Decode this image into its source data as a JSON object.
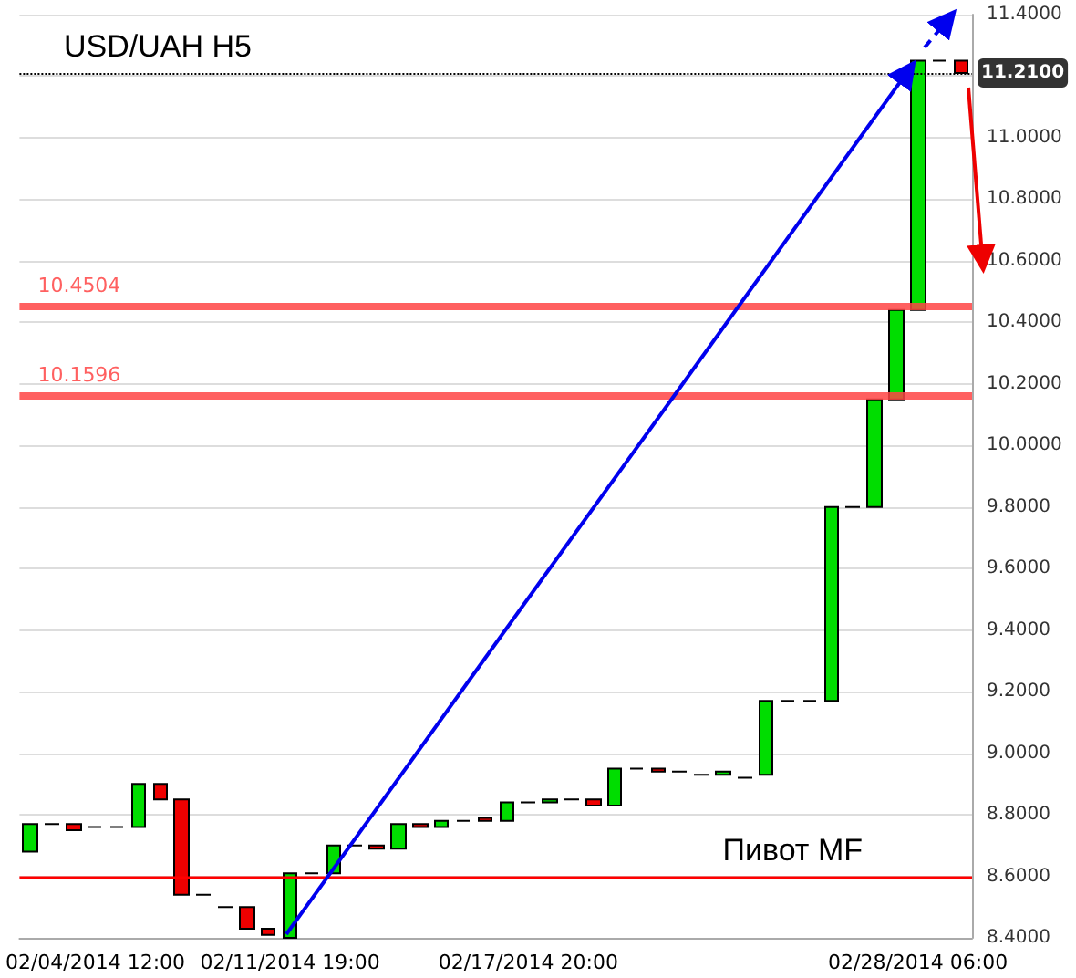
{
  "chart_data": {
    "type": "candlestick",
    "title": "USD/UAH H5",
    "categories": [
      null,
      null,
      null,
      "02/04/2014 12:00",
      null,
      null,
      null,
      null,
      null,
      null,
      null,
      null,
      "02/11/2014 19:00",
      null,
      null,
      null,
      null,
      null,
      null,
      null,
      null,
      null,
      null,
      "02/17/2014 20:00",
      null,
      null,
      null,
      null,
      null,
      null,
      null,
      null,
      null,
      null,
      null,
      null,
      null,
      null,
      null,
      null,
      null,
      "02/28/2014 06:00",
      null,
      null
    ],
    "ohlc": [
      [
        8.68,
        8.77,
        8.68,
        8.77
      ],
      [
        8.77,
        8.77,
        8.77,
        8.77
      ],
      [
        8.77,
        8.77,
        8.75,
        8.75
      ],
      [
        8.76,
        8.76,
        8.76,
        8.76
      ],
      [
        8.76,
        8.76,
        8.76,
        8.76
      ],
      [
        8.76,
        8.9,
        8.76,
        8.9
      ],
      [
        8.9,
        8.9,
        8.85,
        8.85
      ],
      [
        8.85,
        8.85,
        8.54,
        8.54
      ],
      [
        8.54,
        8.54,
        8.54,
        8.54
      ],
      [
        8.5,
        8.5,
        8.5,
        8.5
      ],
      [
        8.5,
        8.5,
        8.43,
        8.43
      ],
      [
        8.43,
        8.43,
        8.41,
        8.41
      ],
      [
        8.4,
        8.61,
        8.4,
        8.61
      ],
      [
        8.61,
        8.61,
        8.61,
        8.61
      ],
      [
        8.61,
        8.7,
        8.61,
        8.7
      ],
      [
        8.7,
        8.7,
        8.7,
        8.7
      ],
      [
        8.7,
        8.7,
        8.69,
        8.69
      ],
      [
        8.69,
        8.77,
        8.69,
        8.77
      ],
      [
        8.77,
        8.77,
        8.76,
        8.76
      ],
      [
        8.76,
        8.78,
        8.76,
        8.78
      ],
      [
        8.78,
        8.78,
        8.78,
        8.78
      ],
      [
        8.79,
        8.79,
        8.78,
        8.78
      ],
      [
        8.78,
        8.84,
        8.78,
        8.84
      ],
      [
        8.84,
        8.84,
        8.84,
        8.84
      ],
      [
        8.84,
        8.85,
        8.84,
        8.85
      ],
      [
        8.85,
        8.85,
        8.85,
        8.85
      ],
      [
        8.85,
        8.85,
        8.83,
        8.83
      ],
      [
        8.83,
        8.95,
        8.83,
        8.95
      ],
      [
        8.95,
        8.95,
        8.95,
        8.95
      ],
      [
        8.95,
        8.95,
        8.94,
        8.94
      ],
      [
        8.94,
        8.94,
        8.94,
        8.94
      ],
      [
        8.93,
        8.93,
        8.93,
        8.93
      ],
      [
        8.93,
        8.94,
        8.93,
        8.94
      ],
      [
        8.92,
        8.92,
        8.92,
        8.92
      ],
      [
        8.93,
        9.17,
        8.93,
        9.17
      ],
      [
        9.17,
        9.17,
        9.17,
        9.17
      ],
      [
        9.17,
        9.17,
        9.17,
        9.17
      ],
      [
        9.17,
        9.8,
        9.17,
        9.8
      ],
      [
        9.8,
        9.8,
        9.8,
        9.8
      ],
      [
        9.8,
        10.15,
        9.8,
        10.15
      ],
      [
        10.15,
        10.44,
        10.15,
        10.44
      ],
      [
        10.44,
        11.25,
        10.44,
        11.25
      ],
      [
        11.25,
        11.25,
        11.25,
        11.25
      ],
      [
        11.25,
        11.25,
        11.21,
        11.21
      ]
    ],
    "colors": [
      "#00dd00",
      "#000000",
      "#ee0000",
      "#000000",
      "#000000",
      "#00dd00",
      "#ee0000",
      "#ee0000",
      "#000000",
      "#000000",
      "#ee0000",
      "#ee0000",
      "#00dd00",
      "#000000",
      "#00dd00",
      "#000000",
      "#ee0000",
      "#00dd00",
      "#ee0000",
      "#00dd00",
      "#000000",
      "#ee0000",
      "#00dd00",
      "#000000",
      "#00dd00",
      "#000000",
      "#ee0000",
      "#00dd00",
      "#000000",
      "#ee0000",
      "#000000",
      "#000000",
      "#00dd00",
      "#000000",
      "#00dd00",
      "#000000",
      "#000000",
      "#00dd00",
      "#000000",
      "#00dd00",
      "#00dd00",
      "#00dd00",
      "#000000",
      "#ee0000"
    ],
    "ylim": [
      8.4,
      11.4
    ],
    "yticks": [
      {
        "value": 8.4,
        "label": "8.4000"
      },
      {
        "value": 8.6,
        "label": "8.6000"
      },
      {
        "value": 8.8,
        "label": "8.8000"
      },
      {
        "value": 9.0,
        "label": "9.0000"
      },
      {
        "value": 9.2,
        "label": "9.2000"
      },
      {
        "value": 9.4,
        "label": "9.4000"
      },
      {
        "value": 9.6,
        "label": "9.6000"
      },
      {
        "value": 9.8,
        "label": "9.8000"
      },
      {
        "value": 10.0,
        "label": "10.0000"
      },
      {
        "value": 10.2,
        "label": "10.2000"
      },
      {
        "value": 10.4,
        "label": "10.4000"
      },
      {
        "value": 10.6,
        "label": "10.6000"
      },
      {
        "value": 10.8,
        "label": "10.8000"
      },
      {
        "value": 11.0,
        "label": "11.0000"
      },
      {
        "value": 11.2,
        "label": null
      },
      {
        "value": 11.4,
        "label": "11.4000"
      }
    ],
    "ref_lines": [
      {
        "axis": "y",
        "value": 10.4504,
        "label": "10.4504",
        "color": "#ff4444"
      },
      {
        "axis": "y",
        "value": 10.1596,
        "label": "10.1596",
        "color": "#ff4444"
      },
      {
        "axis": "y",
        "value": 8.6,
        "label": "Пивот MF",
        "color": "#ff0000"
      },
      {
        "axis": "y",
        "value": 11.21,
        "label": "11.2100",
        "color": "#000000",
        "line_style": "dotted"
      }
    ],
    "grid": "y"
  }
}
